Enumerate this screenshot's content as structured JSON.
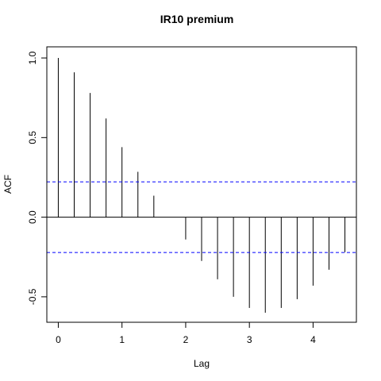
{
  "chart_data": {
    "type": "bar",
    "title": "IR10 premium",
    "xlabel": "Lag",
    "ylabel": "ACF",
    "xlim": [
      -0.18,
      4.68
    ],
    "ylim": [
      -0.66,
      1.07
    ],
    "x_ticks": [
      0,
      1,
      2,
      3,
      4
    ],
    "x_tick_labels": [
      "0",
      "1",
      "2",
      "3",
      "4"
    ],
    "y_ticks": [
      -0.5,
      0.0,
      0.5,
      1.0
    ],
    "y_tick_labels": [
      "-0.5",
      "0.0",
      "0.5",
      "1.0"
    ],
    "x": [
      0,
      0.25,
      0.5,
      0.75,
      1.0,
      1.25,
      1.5,
      1.75,
      2.0,
      2.25,
      2.5,
      2.75,
      3.0,
      3.25,
      3.5,
      3.75,
      4.0,
      4.25,
      4.5
    ],
    "values": [
      1.0,
      0.91,
      0.78,
      0.62,
      0.44,
      0.285,
      0.135,
      0.0,
      -0.14,
      -0.275,
      -0.39,
      -0.5,
      -0.57,
      -0.6,
      -0.57,
      -0.515,
      -0.43,
      -0.33,
      -0.22
    ],
    "confidence_bounds": [
      0.222,
      -0.222
    ],
    "zero_line": 0,
    "colors": {
      "bars": "#000000",
      "confidence": "#0000ff",
      "axes": "#000000"
    },
    "grid": false
  }
}
